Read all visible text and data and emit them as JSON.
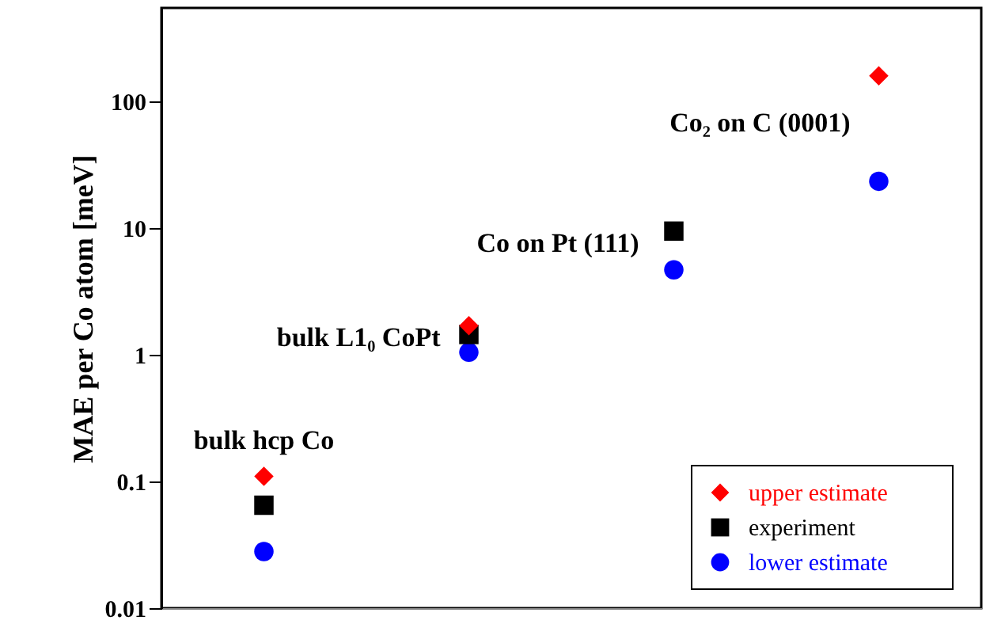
{
  "chart_data": {
    "type": "scatter",
    "categories": [
      null,
      null,
      null,
      null
    ],
    "ylabel": "MAE per Co atom [meV]",
    "log": "y",
    "ylim": [
      0.01,
      550
    ],
    "yticks": [
      0.01,
      0.1,
      1,
      10,
      100
    ],
    "tick_labels": "y",
    "grid": false,
    "legend": "bottom right",
    "series": [
      {
        "name": "upper estimate",
        "color": "#ff0000",
        "marker": "diamond",
        "values": [
          0.11,
          1.7,
          null,
          160
        ]
      },
      {
        "name": "experiment",
        "color": "#000000",
        "marker": "square",
        "values": [
          0.065,
          1.45,
          9.5,
          null
        ]
      },
      {
        "name": "lower estimate",
        "color": "#0000ff",
        "marker": "circle",
        "values": [
          0.028,
          1.05,
          4.7,
          23.5
        ]
      }
    ],
    "annotations": [
      "bulk hcp Co",
      "bulk L1₀ CoPt",
      "Co on Pt (111)",
      "Co₂ on C (0001)"
    ]
  }
}
